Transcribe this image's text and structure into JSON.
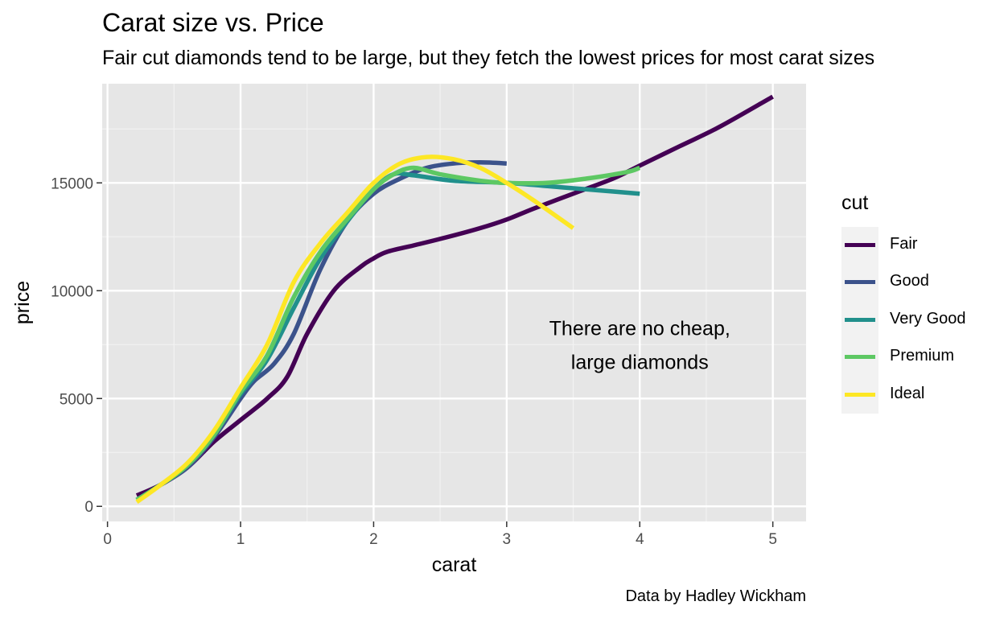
{
  "chart_data": {
    "type": "line",
    "title": "Carat size vs. Price",
    "subtitle": "Fair cut diamonds tend to be large, but they fetch the lowest prices for most carat sizes",
    "caption": "Data by Hadley Wickham",
    "xlabel": "carat",
    "ylabel": "price",
    "xlim": [
      -0.04,
      5.25
    ],
    "ylim": [
      -700,
      19600
    ],
    "xticks": [
      0,
      1,
      2,
      3,
      4,
      5
    ],
    "yticks": [
      0,
      5000,
      10000,
      15000
    ],
    "grid": true,
    "legend_title": "cut",
    "legend_position": "right",
    "annotation": {
      "lines": [
        "There are no cheap,",
        "large diamonds"
      ],
      "x": 4.0,
      "y": 7500
    },
    "series": [
      {
        "name": "Fair",
        "color": "#440154",
        "x": [
          0.22,
          0.4,
          0.6,
          0.8,
          1.0,
          1.2,
          1.35,
          1.5,
          1.7,
          1.9,
          2.0,
          2.1,
          2.3,
          2.5,
          2.8,
          3.0,
          3.2,
          3.5,
          3.8,
          4.0,
          4.3,
          4.6,
          5.0
        ],
        "y": [
          500,
          1000,
          1800,
          3000,
          4000,
          5000,
          6000,
          8000,
          10000,
          11100,
          11500,
          11800,
          12100,
          12400,
          12900,
          13300,
          13800,
          14500,
          15200,
          15800,
          16700,
          17600,
          19000
        ]
      },
      {
        "name": "Good",
        "color": "#3B528B",
        "x": [
          0.22,
          0.4,
          0.6,
          0.8,
          1.0,
          1.1,
          1.25,
          1.4,
          1.6,
          1.8,
          2.0,
          2.2,
          2.4,
          2.6,
          2.8,
          3.0
        ],
        "y": [
          300,
          1000,
          1800,
          3200,
          5000,
          5800,
          6600,
          8000,
          11000,
          13200,
          14500,
          15200,
          15700,
          15900,
          15950,
          15900
        ]
      },
      {
        "name": "Very Good",
        "color": "#21908C",
        "x": [
          0.22,
          0.4,
          0.6,
          0.8,
          1.0,
          1.2,
          1.4,
          1.6,
          1.8,
          2.0,
          2.15,
          2.3,
          2.6,
          3.0,
          3.4,
          3.8,
          4.0
        ],
        "y": [
          300,
          1000,
          1900,
          3300,
          5200,
          6800,
          9200,
          11500,
          13200,
          14700,
          15400,
          15350,
          15100,
          15000,
          14800,
          14600,
          14500
        ]
      },
      {
        "name": "Premium",
        "color": "#5DC863",
        "x": [
          0.22,
          0.4,
          0.6,
          0.8,
          1.0,
          1.2,
          1.4,
          1.6,
          1.8,
          2.0,
          2.15,
          2.3,
          2.5,
          2.8,
          3.0,
          3.3,
          3.6,
          3.9,
          4.0
        ],
        "y": [
          300,
          1000,
          1900,
          3300,
          5300,
          7000,
          9700,
          11800,
          13300,
          14700,
          15400,
          15700,
          15400,
          15100,
          15000,
          15000,
          15200,
          15500,
          15700
        ]
      },
      {
        "name": "Ideal",
        "color": "#FDE725",
        "x": [
          0.22,
          0.4,
          0.6,
          0.8,
          1.0,
          1.2,
          1.4,
          1.6,
          1.8,
          2.0,
          2.2,
          2.4,
          2.6,
          2.8,
          3.0,
          3.2,
          3.5
        ],
        "y": [
          200,
          1000,
          2000,
          3500,
          5500,
          7500,
          10400,
          12200,
          13600,
          15000,
          15900,
          16200,
          16100,
          15700,
          15000,
          14200,
          12900
        ]
      }
    ]
  }
}
